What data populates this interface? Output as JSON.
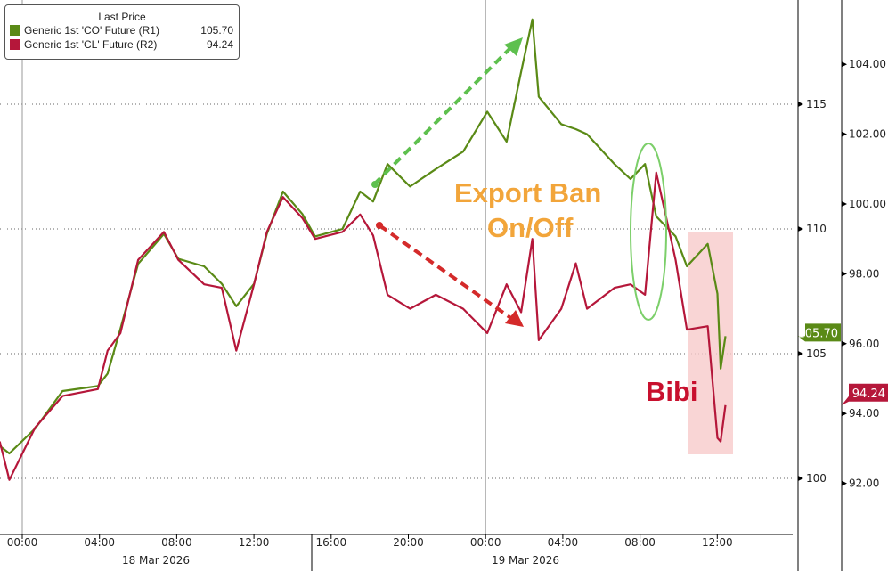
{
  "chart_data": {
    "type": "line",
    "legend": {
      "title": "Last Price",
      "placement": "top-left"
    },
    "series": [
      {
        "name": "Generic 1st 'CO' Future",
        "axis_label": "(R1)",
        "last": "105.70",
        "color": "#5a8a16",
        "axis": "R1",
        "values": [
          101.3,
          101.0,
          102.0,
          103.5,
          103.7,
          104.2,
          106.0,
          108.6,
          109.8,
          108.8,
          108.5,
          107.8,
          106.9,
          107.8,
          109.8,
          111.5,
          110.6,
          109.7,
          110.0,
          111.5,
          111.1,
          112.6,
          111.7,
          112.4,
          113.1,
          114.7,
          113.5,
          116.3,
          118.4,
          115.3,
          114.2,
          114.0,
          113.8,
          112.6,
          112.0,
          112.6,
          110.5,
          109.7,
          108.5,
          109.4,
          107.4,
          104.4,
          105.7
        ]
      },
      {
        "name": "Generic 1st 'CL' Future",
        "axis_label": "(R2)",
        "last": "94.24",
        "color": "#b5173a",
        "axis": "R2",
        "values": [
          93.2,
          92.1,
          93.6,
          94.5,
          94.7,
          95.8,
          96.3,
          98.4,
          99.2,
          98.4,
          97.7,
          97.6,
          95.8,
          97.7,
          99.2,
          100.2,
          99.6,
          99.0,
          99.2,
          99.7,
          99.1,
          97.4,
          97.0,
          97.4,
          97.0,
          96.3,
          97.7,
          96.9,
          99.0,
          96.1,
          97.0,
          98.3,
          97.0,
          97.6,
          97.7,
          97.4,
          100.9,
          98.4,
          96.4,
          96.5,
          93.3,
          93.2,
          94.24
        ]
      }
    ],
    "x": [
      "2026-03-17 22:50",
      "2026-03-17 23:20",
      "2026-03-18 00:40",
      "2026-03-18 02:05",
      "2026-03-18 03:55",
      "2026-03-18 04:25",
      "2026-03-18 05:05",
      "2026-03-18 06:00",
      "2026-03-18 07:20",
      "2026-03-18 08:05",
      "2026-03-18 09:25",
      "2026-03-18 10:20",
      "2026-03-18 11:05",
      "2026-03-18 12:00",
      "2026-03-18 12:40",
      "2026-03-18 13:30",
      "2026-03-18 14:30",
      "2026-03-18 15:10",
      "2026-03-18 16:35",
      "2026-03-18 17:30",
      "2026-03-18 18:10",
      "2026-03-18 18:55",
      "2026-03-18 20:05",
      "2026-03-18 21:25",
      "2026-03-18 22:50",
      "2026-03-19 00:05",
      "2026-03-19 01:05",
      "2026-03-19 01:50",
      "2026-03-19 02:25",
      "2026-03-19 02:45",
      "2026-03-19 03:55",
      "2026-03-19 04:40",
      "2026-03-19 05:15",
      "2026-03-19 06:40",
      "2026-03-19 07:30",
      "2026-03-19 08:15",
      "2026-03-19 08:50",
      "2026-03-19 09:50",
      "2026-03-19 10:25",
      "2026-03-19 11:30",
      "2026-03-19 12:00",
      "2026-03-19 12:10",
      "2026-03-19 12:25"
    ],
    "x_ticks": [
      "00:00",
      "04:00",
      "08:00",
      "12:00",
      "16:00",
      "20:00",
      "00:00",
      "04:00",
      "08:00",
      "12:00"
    ],
    "date_labels": [
      "18 Mar 2026",
      "19 Mar 2026"
    ],
    "r1_ticks": [
      "115",
      "110",
      "105",
      "100"
    ],
    "r1_range": [
      98.8,
      119.2
    ],
    "r2_ticks": [
      "104.00",
      "102.00",
      "100.00",
      "98.00",
      "96.00",
      "94.00",
      "92.00"
    ],
    "r2_range": [
      90.5,
      105.8
    ],
    "grid": true,
    "annotations": {
      "export_ban_1": "Export Ban",
      "export_ban_2": "On/Off",
      "bibi": "Bibi"
    },
    "annotation_colors": {
      "export_ban": "#f2a53a",
      "bibi": "#c8102e",
      "up_arrow": "#5ec04e",
      "down_arrow": "#d42a2a",
      "highlight_box": "#f7caca",
      "ellipse": "#7ccf6a"
    }
  }
}
